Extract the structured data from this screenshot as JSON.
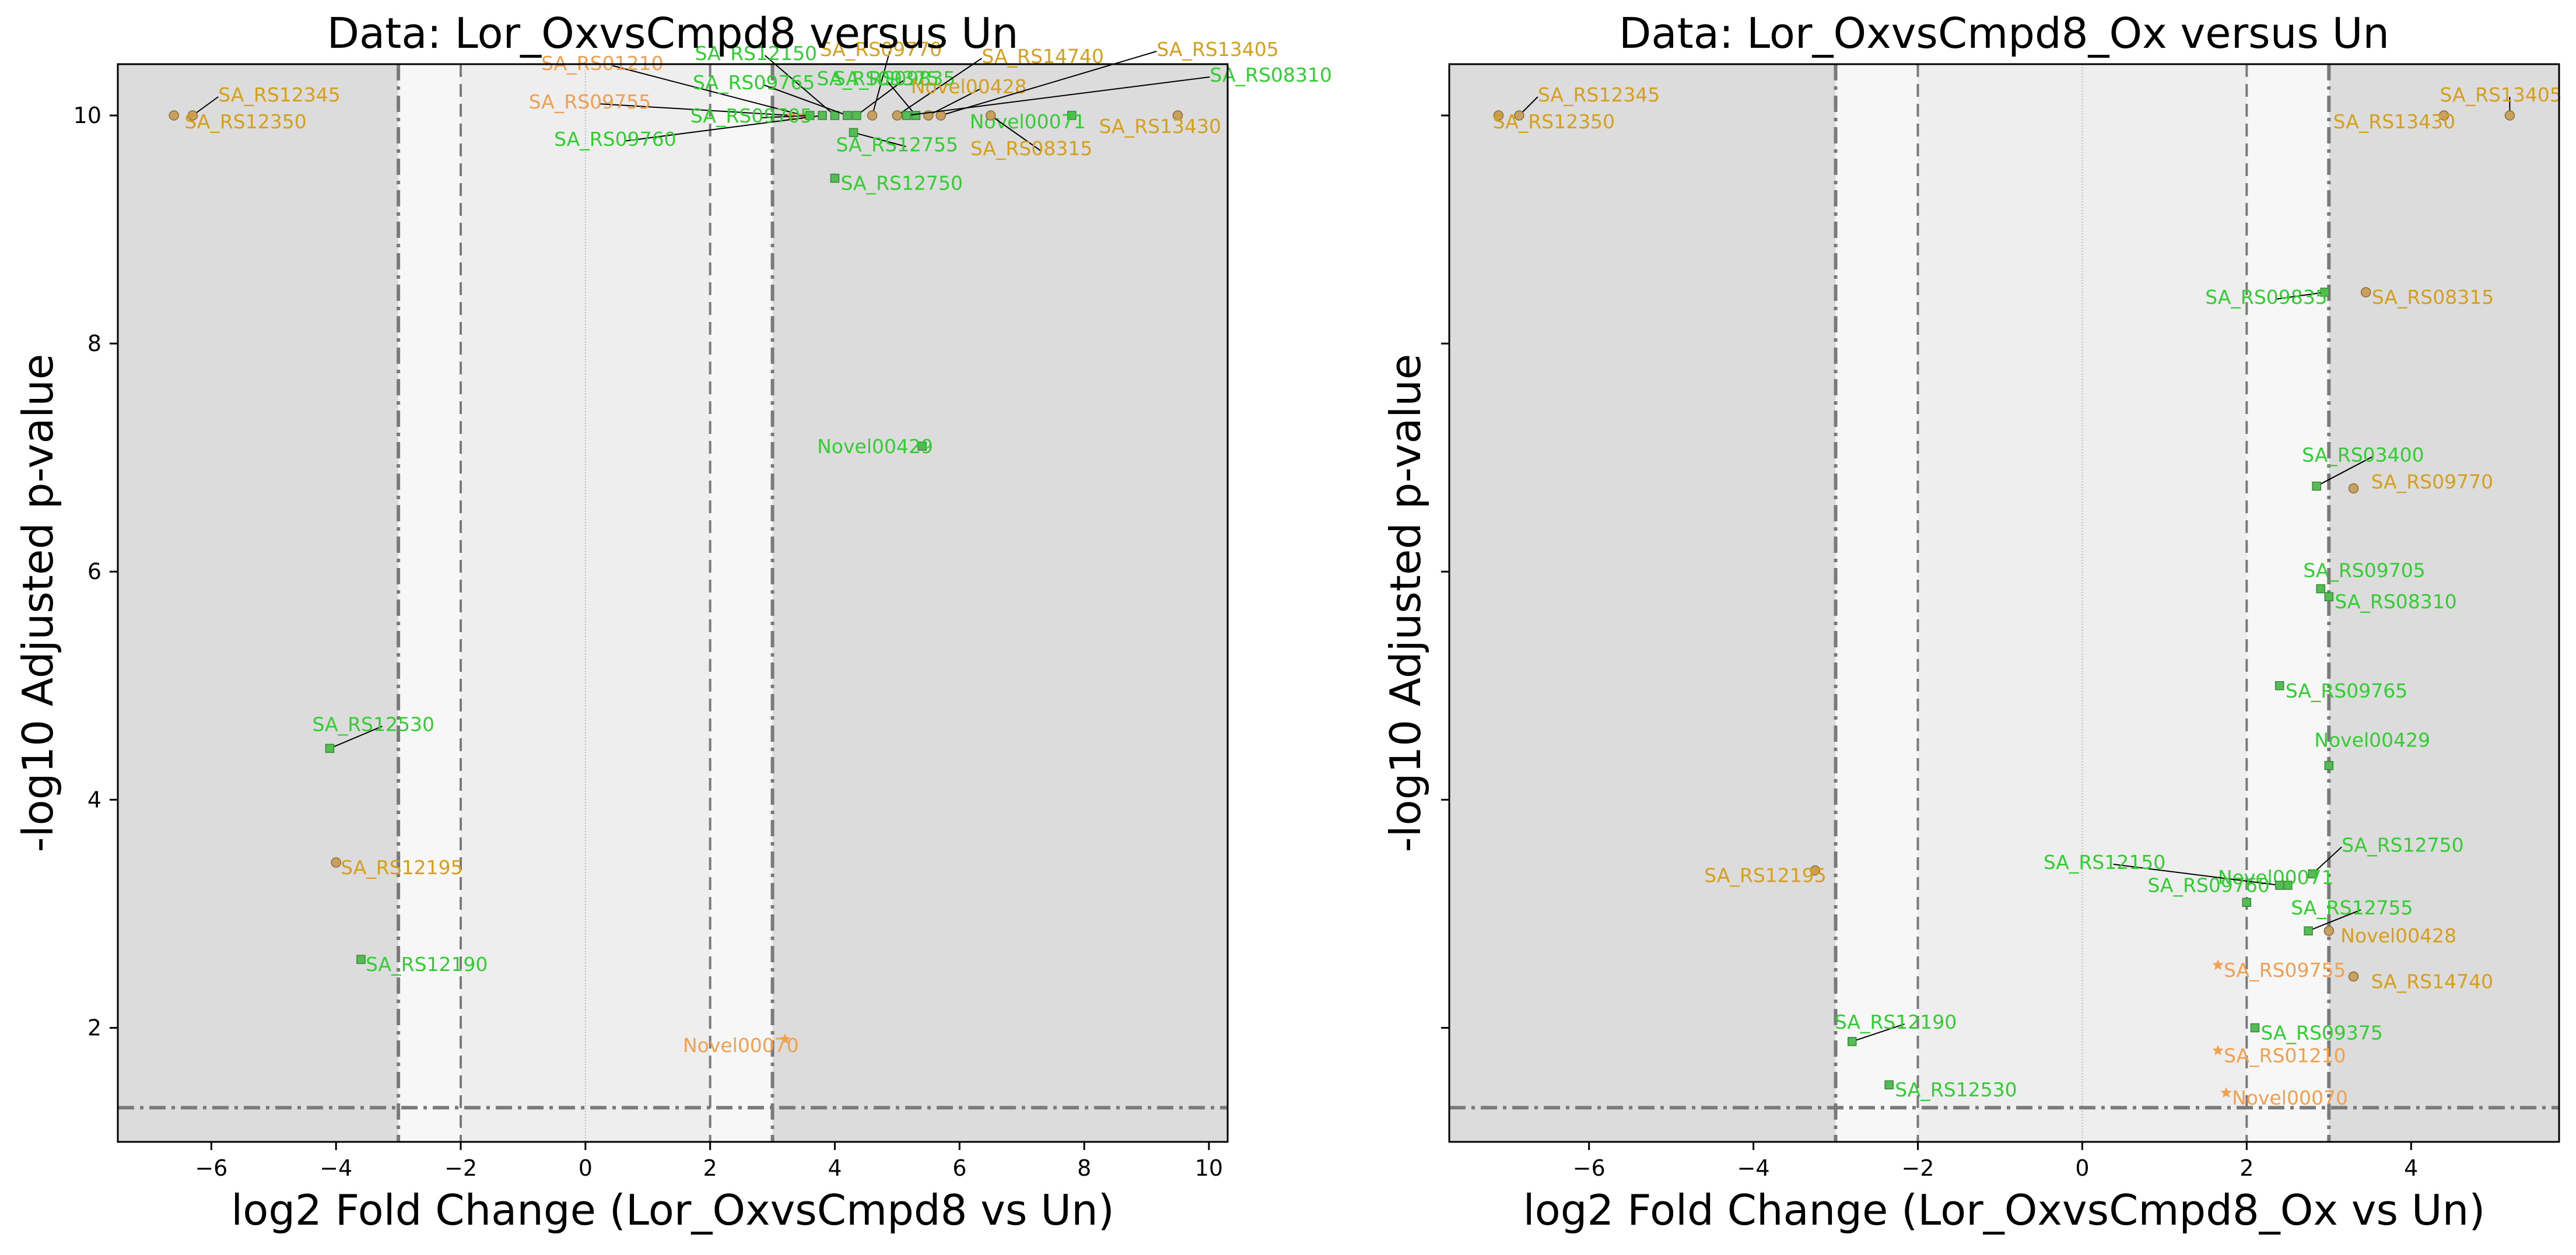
{
  "chart_data": [
    {
      "type": "scatter",
      "title": "Data: Lor_OxvsCmpd8 versus Un",
      "xlabel": "log2 Fold Change (Lor_OxvsCmpd8 vs Un)",
      "ylabel": "-log10 Adjusted p-value",
      "xlim": [
        -7.5,
        10.3
      ],
      "ylim": [
        1.0,
        10.45
      ],
      "xticks": [
        -6,
        -4,
        -2,
        0,
        2,
        4,
        6,
        8,
        10
      ],
      "yticks": [
        2,
        4,
        6,
        8,
        10
      ],
      "xtick_labels": [
        "−6",
        "−4",
        "−2",
        "0",
        "2",
        "4",
        "6",
        "8",
        "10"
      ],
      "ytick_labels": [
        "2",
        "4",
        "6",
        "8",
        "10"
      ],
      "dark_shade_regions": [
        [
          -7.5,
          -3
        ],
        [
          3,
          10.3
        ]
      ],
      "light_shade_regions": [
        [
          -3,
          -2
        ],
        [
          2,
          3
        ]
      ],
      "mid_shade_region": [
        -2,
        2
      ],
      "vlines_dashdot": [
        -3,
        3
      ],
      "vlines_dashed": [
        -2,
        2
      ],
      "vline_dotted": [
        0
      ],
      "hline_dashdot": [
        1.3
      ],
      "points": [
        {
          "label": "SA_RS12345",
          "x": -6.3,
          "y": 10.0,
          "color": "#d59f1e",
          "shape": "circle"
        },
        {
          "label": "SA_RS12350",
          "x": -6.6,
          "y": 10.0,
          "color": "#d59f1e",
          "shape": "circle"
        },
        {
          "label": "SA_RS12530",
          "x": -4.1,
          "y": 4.45,
          "color": "#33cc33",
          "shape": "square"
        },
        {
          "label": "SA_RS12195",
          "x": -4.0,
          "y": 3.45,
          "color": "#d59f1e",
          "shape": "circle"
        },
        {
          "label": "SA_RS12190",
          "x": -3.6,
          "y": 2.6,
          "color": "#33cc33",
          "shape": "square"
        },
        {
          "label": "SA_RS01210",
          "x": 3.5,
          "y": 10.0,
          "color": "#f0a050",
          "shape": "star"
        },
        {
          "label": "SA_RS09755",
          "x": 3.3,
          "y": 10.0,
          "color": "#f0a050",
          "shape": "star"
        },
        {
          "label": "SA_RS09760",
          "x": 3.8,
          "y": 10.0,
          "color": "#33cc33",
          "shape": "square"
        },
        {
          "label": "SA_RS12150",
          "x": 4.0,
          "y": 10.0,
          "color": "#33cc33",
          "shape": "square"
        },
        {
          "label": "SA_RS09765",
          "x": 4.2,
          "y": 10.0,
          "color": "#33cc33",
          "shape": "square"
        },
        {
          "label": "SA_RS09705",
          "x": 3.6,
          "y": 10.0,
          "color": "#33cc33",
          "shape": "square"
        },
        {
          "label": "SA_RS09770",
          "x": 4.6,
          "y": 10.0,
          "color": "#d59f1e",
          "shape": "circle"
        },
        {
          "label": "SA_RS09835",
          "x": 4.35,
          "y": 10.0,
          "color": "#33cc33",
          "shape": "square"
        },
        {
          "label": "SA_RS09375",
          "x": 5.3,
          "y": 10.0,
          "color": "#33cc33",
          "shape": "square"
        },
        {
          "label": "SA_RS14740",
          "x": 5.0,
          "y": 10.0,
          "color": "#d59f1e",
          "shape": "circle"
        },
        {
          "label": "Novel00428",
          "x": 5.5,
          "y": 10.0,
          "color": "#d59f1e",
          "shape": "circle"
        },
        {
          "label": "SA_RS13405",
          "x": 5.7,
          "y": 10.0,
          "color": "#d59f1e",
          "shape": "circle"
        },
        {
          "label": "SA_RS08310",
          "x": 5.15,
          "y": 10.0,
          "color": "#33cc33",
          "shape": "square"
        },
        {
          "label": "Novel00071",
          "x": 7.8,
          "y": 10.0,
          "color": "#33cc33",
          "shape": "square"
        },
        {
          "label": "SA_RS13430",
          "x": 9.5,
          "y": 10.0,
          "color": "#d59f1e",
          "shape": "circle"
        },
        {
          "label": "SA_RS08315",
          "x": 6.5,
          "y": 10.0,
          "color": "#d59f1e",
          "shape": "circle"
        },
        {
          "label": "SA_RS12755",
          "x": 4.3,
          "y": 9.85,
          "color": "#33cc33",
          "shape": "square"
        },
        {
          "label": "SA_RS12750",
          "x": 4.0,
          "y": 9.45,
          "color": "#33cc33",
          "shape": "square"
        },
        {
          "label": "Novel00429",
          "x": 5.4,
          "y": 7.1,
          "color": "#33cc33",
          "shape": "square"
        },
        {
          "label": "Novel00070",
          "x": 3.2,
          "y": 1.9,
          "color": "#f0a050",
          "shape": "star"
        }
      ]
    },
    {
      "type": "scatter",
      "title": "Data: Lor_OxvsCmpd8_Ox versus Un",
      "xlabel": "log2 Fold Change (Lor_OxvsCmpd8_Ox vs Un)",
      "ylabel": "-log10 Adjusted p-value",
      "xlim": [
        -7.7,
        5.8
      ],
      "ylim": [
        1.0,
        10.45
      ],
      "xticks": [
        -6,
        -4,
        -2,
        0,
        2,
        4
      ],
      "yticks": [
        2,
        4,
        6,
        8,
        10
      ],
      "xtick_labels": [
        "−6",
        "−4",
        "−2",
        "0",
        "2",
        "4"
      ],
      "dark_shade_regions": [
        [
          -7.7,
          -3
        ],
        [
          3,
          5.8
        ]
      ],
      "light_shade_regions": [
        [
          -3,
          -2
        ],
        [
          2,
          3
        ]
      ],
      "mid_shade_region": [
        -2,
        2
      ],
      "vlines_dashdot": [
        -3,
        3
      ],
      "vlines_dashed": [
        -2,
        2
      ],
      "vline_dotted": [
        0
      ],
      "hline_dashdot": [
        1.3
      ],
      "points": [
        {
          "label": "SA_RS12345",
          "x": -6.85,
          "y": 10.0,
          "color": "#d59f1e",
          "shape": "circle"
        },
        {
          "label": "SA_RS12350",
          "x": -7.1,
          "y": 10.0,
          "color": "#d59f1e",
          "shape": "circle"
        },
        {
          "label": "SA_RS13405",
          "x": 5.2,
          "y": 10.0,
          "color": "#d59f1e",
          "shape": "circle"
        },
        {
          "label": "SA_RS13430",
          "x": 4.4,
          "y": 10.0,
          "color": "#d59f1e",
          "shape": "circle"
        },
        {
          "label": "SA_RS09835",
          "x": 2.95,
          "y": 8.45,
          "color": "#33cc33",
          "shape": "square"
        },
        {
          "label": "SA_RS08315",
          "x": 3.45,
          "y": 8.45,
          "color": "#d59f1e",
          "shape": "circle"
        },
        {
          "label": "SA_RS03400",
          "x": 2.85,
          "y": 6.75,
          "color": "#33cc33",
          "shape": "square"
        },
        {
          "label": "SA_RS09770",
          "x": 3.3,
          "y": 6.73,
          "color": "#d59f1e",
          "shape": "circle"
        },
        {
          "label": "SA_RS09705",
          "x": 2.9,
          "y": 5.85,
          "color": "#33cc33",
          "shape": "square"
        },
        {
          "label": "SA_RS08310",
          "x": 3.0,
          "y": 5.78,
          "color": "#33cc33",
          "shape": "square"
        },
        {
          "label": "SA_RS09765",
          "x": 2.4,
          "y": 5.0,
          "color": "#33cc33",
          "shape": "square"
        },
        {
          "label": "Novel00429",
          "x": 3.0,
          "y": 4.3,
          "color": "#33cc33",
          "shape": "square"
        },
        {
          "label": "SA_RS12750",
          "x": 2.8,
          "y": 3.35,
          "color": "#33cc33",
          "shape": "square"
        },
        {
          "label": "Novel00071",
          "x": 2.5,
          "y": 3.25,
          "color": "#33cc33",
          "shape": "square"
        },
        {
          "label": "SA_RS12150",
          "x": 2.4,
          "y": 3.25,
          "color": "#33cc33",
          "shape": "square"
        },
        {
          "label": "SA_RS09760",
          "x": 2.0,
          "y": 3.1,
          "color": "#33cc33",
          "shape": "square"
        },
        {
          "label": "SA_RS12195",
          "x": -3.25,
          "y": 3.38,
          "color": "#d59f1e",
          "shape": "circle"
        },
        {
          "label": "SA_RS12755",
          "x": 2.75,
          "y": 2.85,
          "color": "#33cc33",
          "shape": "square"
        },
        {
          "label": "Novel00428",
          "x": 3.0,
          "y": 2.85,
          "color": "#d59f1e",
          "shape": "circle"
        },
        {
          "label": "SA_RS09755",
          "x": 1.65,
          "y": 2.55,
          "color": "#f0a050",
          "shape": "star"
        },
        {
          "label": "SA_RS14740",
          "x": 3.3,
          "y": 2.45,
          "color": "#d59f1e",
          "shape": "circle"
        },
        {
          "label": "SA_RS09375",
          "x": 2.1,
          "y": 2.0,
          "color": "#33cc33",
          "shape": "square"
        },
        {
          "label": "SA_RS12190",
          "x": -2.8,
          "y": 1.88,
          "color": "#33cc33",
          "shape": "square"
        },
        {
          "label": "SA_RS01210",
          "x": 1.65,
          "y": 1.8,
          "color": "#f0a050",
          "shape": "star"
        },
        {
          "label": "SA_RS12530",
          "x": -2.35,
          "y": 1.5,
          "color": "#33cc33",
          "shape": "square"
        },
        {
          "label": "Novel00070",
          "x": 1.75,
          "y": 1.43,
          "color": "#f0a050",
          "shape": "star"
        }
      ]
    }
  ]
}
